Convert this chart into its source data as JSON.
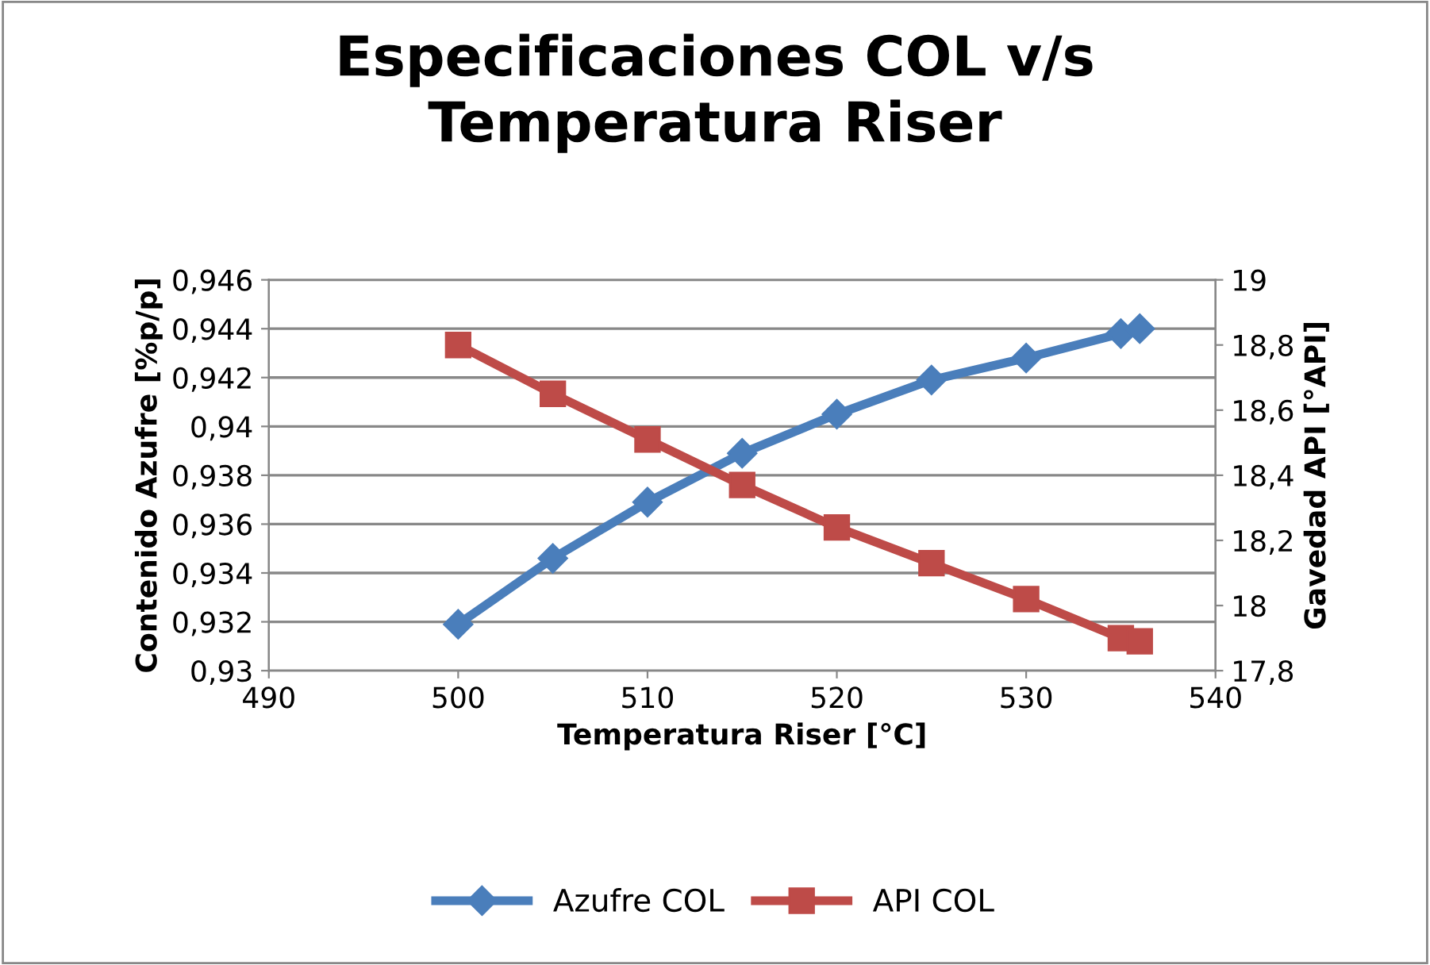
{
  "chart_data": {
    "type": "line",
    "title": "Especificaciones COL v/s\nTemperatura Riser",
    "xlabel": "Temperatura Riser [°C]",
    "ylabel": "Contenido Azufre [%p/p]",
    "y2label": "Gavedad API [°API]",
    "xlim": [
      490,
      540
    ],
    "xticks": [
      490,
      500,
      510,
      520,
      530,
      540
    ],
    "ylim": [
      0.93,
      0.946
    ],
    "yticks": [
      {
        "value": 0.93,
        "label": "0,93"
      },
      {
        "value": 0.932,
        "label": "0,932"
      },
      {
        "value": 0.934,
        "label": "0,934"
      },
      {
        "value": 0.936,
        "label": "0,936"
      },
      {
        "value": 0.938,
        "label": "0,938"
      },
      {
        "value": 0.94,
        "label": "0,94"
      },
      {
        "value": 0.942,
        "label": "0,942"
      },
      {
        "value": 0.944,
        "label": "0,944"
      },
      {
        "value": 0.946,
        "label": "0,946"
      }
    ],
    "y2lim": [
      17.8,
      19
    ],
    "y2ticks": [
      {
        "value": 17.8,
        "label": "17,8"
      },
      18,
      {
        "value": 18.2,
        "label": "18,2"
      },
      {
        "value": 18.4,
        "label": "18,4"
      },
      {
        "value": 18.6,
        "label": "18,6"
      },
      {
        "value": 18.8,
        "label": "18,8"
      },
      19
    ],
    "grid": "y",
    "legend": "bottom",
    "series": [
      {
        "name": "Azufre COL",
        "color": "#4a7ebb",
        "marker": "diamond",
        "x": [
          500,
          505,
          510,
          515,
          520,
          525,
          530,
          535,
          536
        ],
        "values": [
          0.9319,
          0.9346,
          0.9369,
          0.9389,
          0.9405,
          0.9419,
          0.9428,
          0.9438,
          0.944
        ]
      },
      {
        "name": "API COL",
        "color": "#be4b48",
        "marker": "square",
        "axis": "y2",
        "x": [
          500,
          505,
          510,
          515,
          520,
          525,
          530,
          535,
          536
        ],
        "values": [
          18.8,
          18.65,
          18.51,
          18.37,
          18.24,
          18.13,
          18.02,
          17.9,
          17.89
        ]
      }
    ]
  }
}
